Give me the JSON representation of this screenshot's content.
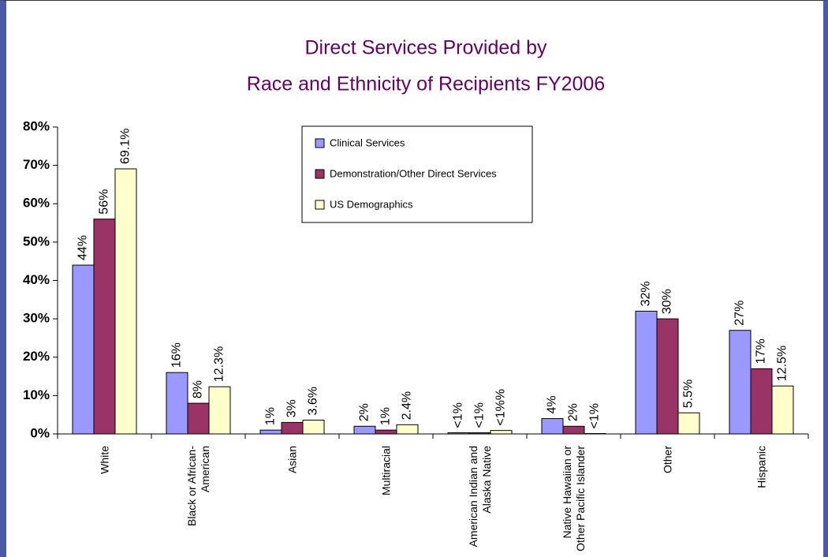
{
  "chart_data": {
    "type": "bar",
    "title": [
      "Direct Services Provided by",
      "Race and Ethnicity of Recipients FY2006"
    ],
    "categories": [
      "White",
      "Black or African-American",
      "Asian",
      "Multiracial",
      "American Indian and Alaska Native",
      "Native Hawaiian or Other Pacific Islander",
      "Other",
      "Hispanic"
    ],
    "series": [
      {
        "name": "Clinical Services",
        "color": "#9999ff",
        "values": [
          44,
          16,
          1,
          2,
          0.3,
          4,
          32,
          27
        ],
        "value_labels": [
          "44%",
          "16%",
          "1%",
          "2%",
          "<1%",
          "4%",
          "32%",
          "27%"
        ]
      },
      {
        "name": "Demonstration/Other Direct Services",
        "color": "#993366",
        "values": [
          56,
          8,
          3,
          1,
          0.3,
          2,
          30,
          17
        ],
        "value_labels": [
          "56%",
          "8%",
          "3%",
          "1%",
          "<1%",
          "2%",
          "30%",
          "17%"
        ]
      },
      {
        "name": "US Demographics",
        "color": "#ffffcc",
        "values": [
          69.1,
          12.3,
          3.6,
          2.4,
          0.9,
          0.1,
          5.5,
          12.5
        ],
        "value_labels": [
          "69.1%",
          "12.3%",
          "3.6%",
          "2.4%",
          "<1%%",
          "<1%",
          "5.5%",
          "12.5%"
        ]
      }
    ],
    "ylim": [
      0,
      80
    ],
    "yticks": [
      {
        "value": 0,
        "label": "0%"
      },
      {
        "value": 10,
        "label": "10%"
      },
      {
        "value": 20,
        "label": "20%"
      },
      {
        "value": 30,
        "label": "30%"
      },
      {
        "value": 40,
        "label": "40%"
      },
      {
        "value": 50,
        "label": "50%"
      },
      {
        "value": 60,
        "label": "60%"
      },
      {
        "value": 70,
        "label": "70%"
      },
      {
        "value": 80,
        "label": "80%"
      }
    ],
    "grid": false,
    "legend": "top"
  }
}
